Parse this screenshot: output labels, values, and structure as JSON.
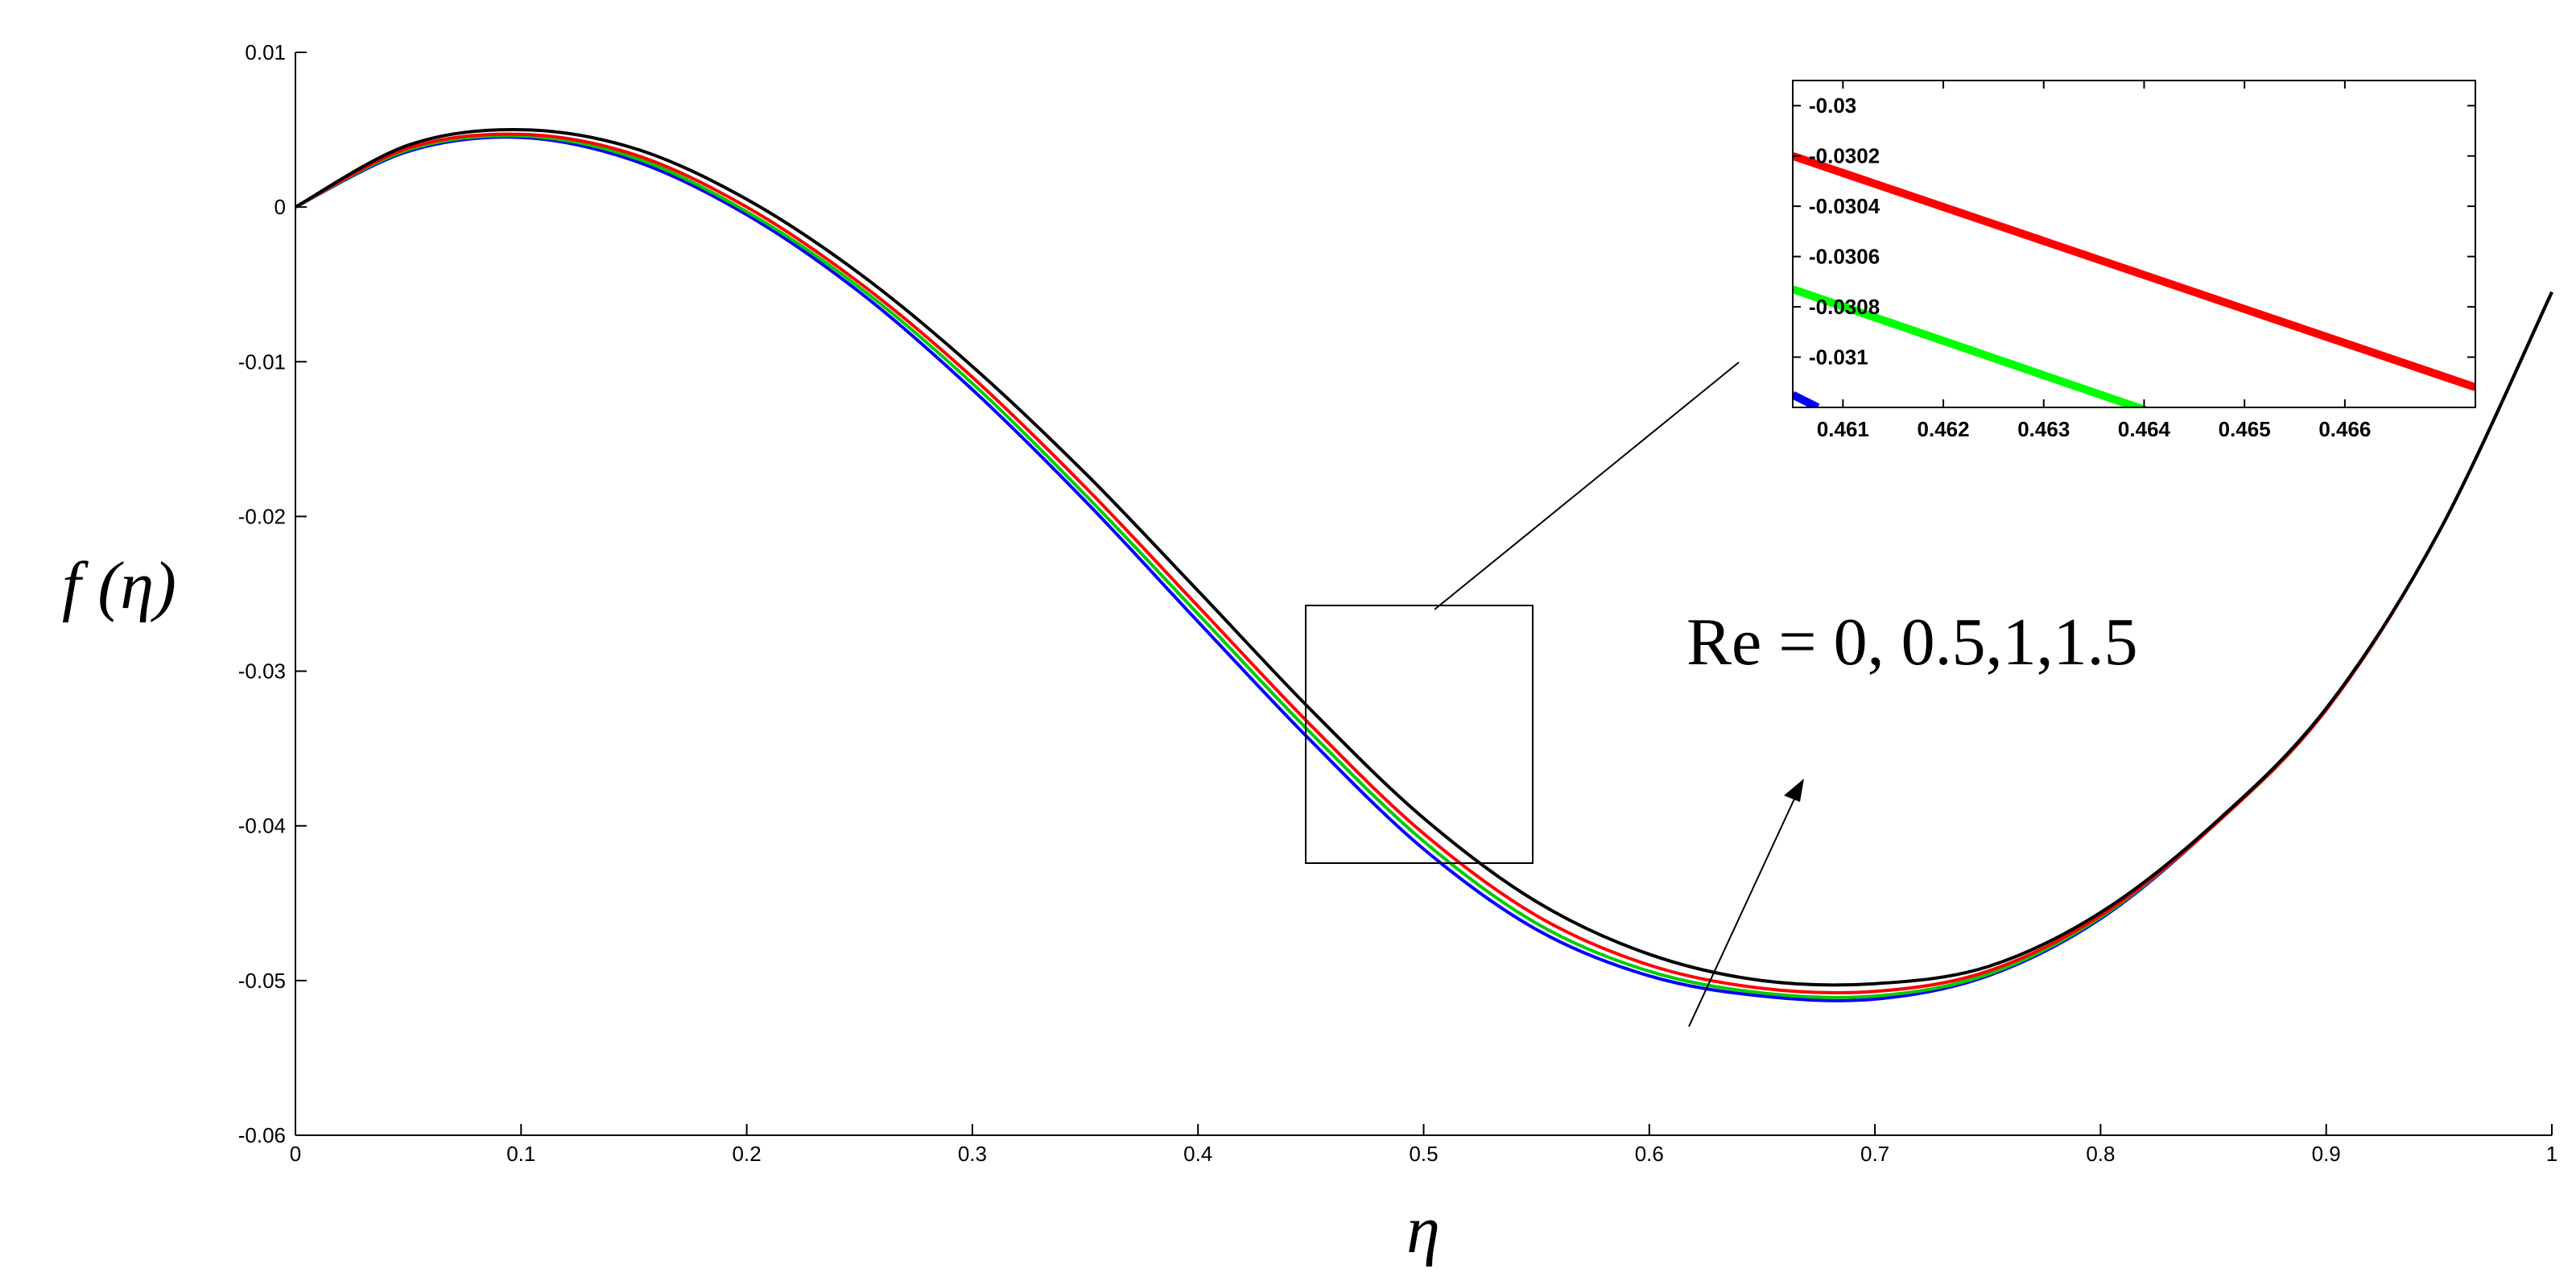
{
  "chart_data": [
    {
      "type": "line",
      "xlabel": "η",
      "ylabel": "f (η)",
      "xlim": [
        0,
        1
      ],
      "ylim": [
        -0.06,
        0.01
      ],
      "x_ticks": [
        0,
        0.1,
        0.2,
        0.3,
        0.4,
        0.5,
        0.6,
        0.7,
        0.8,
        0.9,
        1
      ],
      "x_tick_labels": [
        "0",
        "0.1",
        "0.2",
        "0.3",
        "0.4",
        "0.5",
        "0.6",
        "0.7",
        "0.8",
        "0.9",
        "1"
      ],
      "y_ticks": [
        0.01,
        0,
        -0.01,
        -0.02,
        -0.03,
        -0.04,
        -0.05,
        -0.06
      ],
      "y_tick_labels": [
        "0.01",
        "0",
        "-0.01",
        "-0.02",
        "-0.03",
        "-0.04",
        "-0.05",
        "-0.06"
      ],
      "grid": false,
      "annotation": "Re = 0, 0.5,1,1.5",
      "x": [
        0,
        0.05,
        0.1,
        0.15,
        0.2,
        0.25,
        0.3,
        0.35,
        0.4,
        0.45,
        0.5,
        0.55,
        0.6,
        0.65,
        0.7,
        0.75,
        0.8,
        0.85,
        0.9,
        0.95,
        1.0
      ],
      "series": [
        {
          "color": "#0000ff",
          "values": [
            0,
            0.0036,
            0.0045,
            0.003,
            -0.0005,
            -0.0055,
            -0.0118,
            -0.019,
            -0.0268,
            -0.0345,
            -0.0415,
            -0.0467,
            -0.0497,
            -0.051,
            -0.0512,
            -0.0497,
            -0.046,
            -0.04,
            -0.0325,
            -0.021,
            -0.0055
          ]
        },
        {
          "color": "#00cc00",
          "values": [
            0,
            0.0037,
            0.0046,
            0.0032,
            -0.0003,
            -0.0052,
            -0.0114,
            -0.0186,
            -0.0263,
            -0.034,
            -0.041,
            -0.0463,
            -0.0494,
            -0.0508,
            -0.051,
            -0.0496,
            -0.0459,
            -0.04,
            -0.0325,
            -0.021,
            -0.0055
          ]
        },
        {
          "color": "#ff0000",
          "values": [
            0,
            0.0038,
            0.0047,
            0.0034,
            0.0,
            -0.0049,
            -0.011,
            -0.0181,
            -0.0258,
            -0.0335,
            -0.0405,
            -0.0458,
            -0.049,
            -0.0505,
            -0.0507,
            -0.0494,
            -0.0458,
            -0.04,
            -0.0325,
            -0.021,
            -0.0055
          ]
        },
        {
          "color": "#000000",
          "values": [
            0,
            0.004,
            0.005,
            0.0038,
            0.0005,
            -0.0043,
            -0.0103,
            -0.0172,
            -0.0248,
            -0.0325,
            -0.0395,
            -0.0449,
            -0.0483,
            -0.05,
            -0.0502,
            -0.0491,
            -0.0456,
            -0.0399,
            -0.0324,
            -0.021,
            -0.0055
          ]
        }
      ]
    },
    {
      "type": "line",
      "xlim": [
        0.4605,
        0.4673
      ],
      "ylim": [
        -0.0312,
        -0.0299
      ],
      "x_ticks": [
        0.461,
        0.462,
        0.463,
        0.464,
        0.465,
        0.466
      ],
      "x_tick_labels": [
        "0.461",
        "0.462",
        "0.463",
        "0.464",
        "0.465",
        "0.466"
      ],
      "y_ticks": [
        -0.03,
        -0.0302,
        -0.0304,
        -0.0306,
        -0.0308,
        -0.031
      ],
      "y_tick_labels": [
        "-0.03",
        "-0.0302",
        "-0.0304",
        "-0.0306",
        "-0.0308",
        "-0.031"
      ],
      "grid": false,
      "series": [
        {
          "color": "#ff0000",
          "points": [
            [
              0.4605,
              -0.0302
            ],
            [
              0.4673,
              -0.03112
            ]
          ]
        },
        {
          "color": "#00ff00",
          "points": [
            [
              0.4605,
              -0.03073
            ],
            [
              0.4643,
              -0.03125
            ]
          ]
        },
        {
          "color": "#0000ff",
          "points": [
            [
              0.4605,
              -0.03115
            ],
            [
              0.46075,
              -0.0312
            ]
          ]
        }
      ]
    }
  ]
}
